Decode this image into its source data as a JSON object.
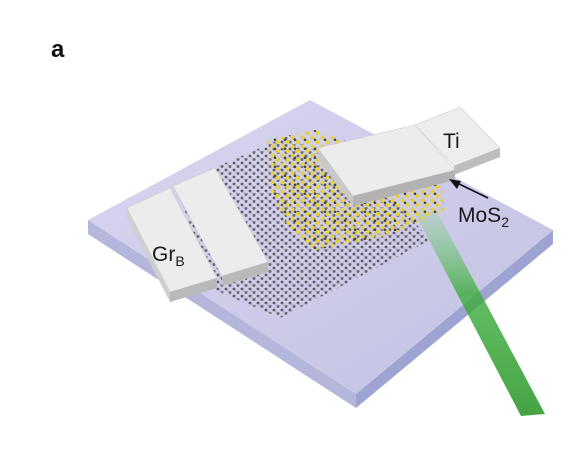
{
  "panel_label": "a",
  "labels": {
    "graphene": {
      "main": "Gr",
      "sub": "B"
    },
    "titanium": "Ti",
    "mos2": {
      "main": "MoS",
      "sub": "2"
    }
  },
  "colors": {
    "substrate_top": "#c9c7e6",
    "substrate_side": "#aeb0d8",
    "electrode": "#e6e6e6",
    "graphene_atoms": "#4a4a4a",
    "mos2_atoms": "#e8d23a",
    "laser": "#3fae3f"
  },
  "icons": [
    "arrow-icon"
  ]
}
